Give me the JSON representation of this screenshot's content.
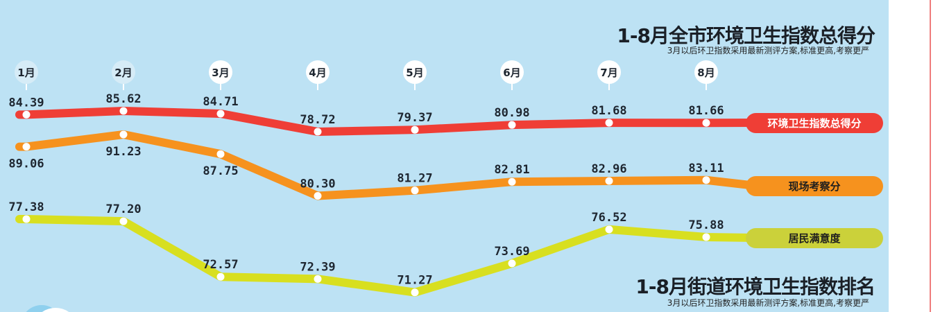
{
  "header": {
    "title": "1-8月全市环境卫生指数总得分",
    "subtitle": "3月以后环卫指数采用最新测评方案,标准更高,考察更严"
  },
  "footer": {
    "title": "1-8月街道环境卫生指数排名",
    "subtitle": "3月以后环卫指数采用最新测评方案,标准更高,考察更严"
  },
  "chart_data": {
    "type": "line",
    "title": "1-8月全市环境卫生指数总得分",
    "categories": [
      "1月",
      "2月",
      "3月",
      "4月",
      "5月",
      "6月",
      "7月",
      "8月"
    ],
    "series": [
      {
        "name": "环境卫生指数总得分",
        "color": "#ef3e36",
        "text_color": "#ffffff",
        "values": [
          84.39,
          85.62,
          84.71,
          78.72,
          79.37,
          80.98,
          81.68,
          81.66
        ]
      },
      {
        "name": "现场考察分",
        "color": "#f6921e",
        "text_color": "#1e1e1e",
        "values": [
          89.06,
          91.23,
          87.75,
          80.3,
          81.27,
          82.81,
          82.96,
          83.11
        ]
      },
      {
        "name": "居民满意度",
        "color": "#d8df20",
        "legend_color": "#cbd13a",
        "text_color": "#1e1e1e",
        "values": [
          77.38,
          77.2,
          72.57,
          72.39,
          71.27,
          73.69,
          76.52,
          75.88
        ]
      }
    ],
    "legend_placement": "right",
    "grid": false
  }
}
